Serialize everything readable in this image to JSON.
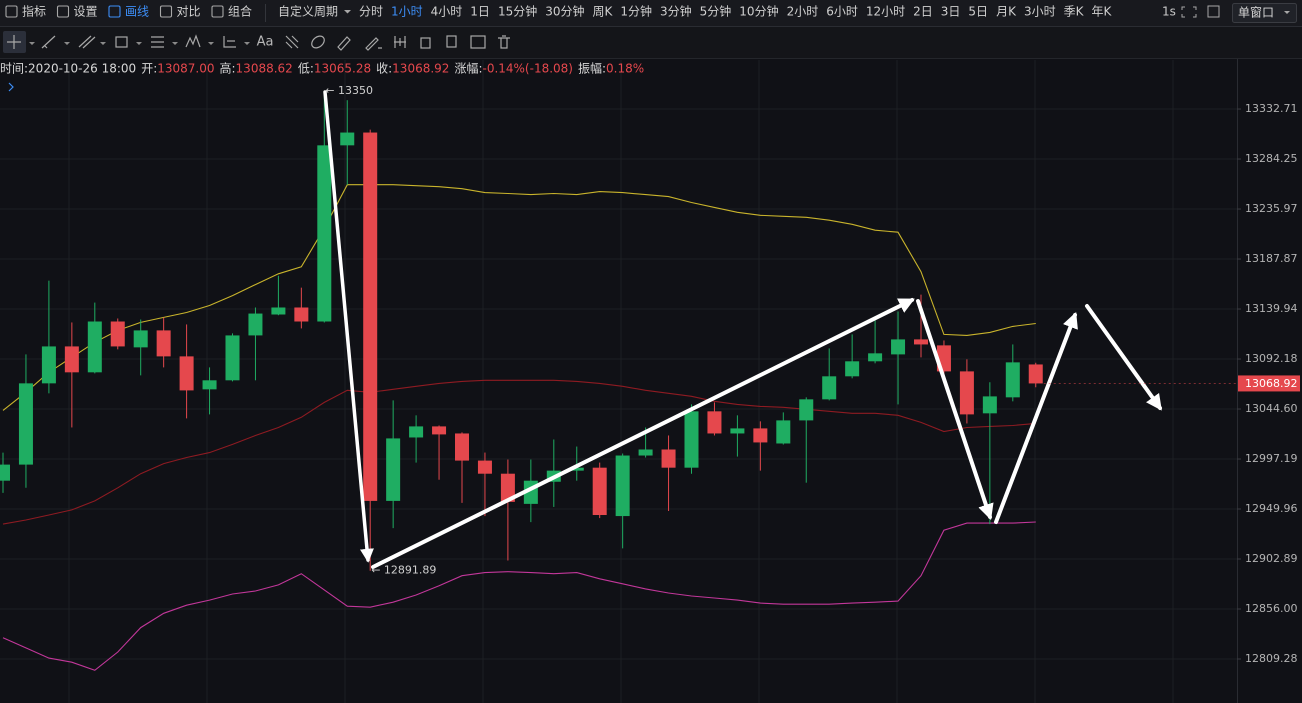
{
  "toolbar": {
    "tools": [
      {
        "label": "指标"
      },
      {
        "label": "设置"
      },
      {
        "label": "画线",
        "active": true
      },
      {
        "label": "对比"
      },
      {
        "label": "组合"
      }
    ],
    "custom_period": "自定义周期",
    "periods": [
      {
        "label": "分时"
      },
      {
        "label": "1小时",
        "active": true
      },
      {
        "label": "4小时"
      },
      {
        "label": "1日"
      },
      {
        "label": "15分钟"
      },
      {
        "label": "30分钟"
      },
      {
        "label": "周K"
      },
      {
        "label": "1分钟"
      },
      {
        "label": "3分钟"
      },
      {
        "label": "5分钟"
      },
      {
        "label": "10分钟"
      },
      {
        "label": "2小时"
      },
      {
        "label": "6小时"
      },
      {
        "label": "12小时"
      },
      {
        "label": "2日"
      },
      {
        "label": "3日"
      },
      {
        "label": "5日"
      },
      {
        "label": "月K"
      },
      {
        "label": "3小时"
      },
      {
        "label": "季K"
      },
      {
        "label": "年K"
      }
    ],
    "interval": "1s",
    "window": "单窗口"
  },
  "drawing_toolbar": {
    "text_tool": "Aa"
  },
  "info": [
    {
      "label": "时间:",
      "value": "2020-10-26 18:00",
      "color": "#d8d8d8"
    },
    {
      "label": "开:",
      "value": "13087.00",
      "color": "#e5484d"
    },
    {
      "label": "高:",
      "value": "13088.62",
      "color": "#e5484d"
    },
    {
      "label": "低:",
      "value": "13065.28",
      "color": "#e5484d"
    },
    {
      "label": "收:",
      "value": "13068.92",
      "color": "#e5484d"
    },
    {
      "label": "涨幅:",
      "value": "-0.14%(-18.08)",
      "color": "#e5484d"
    },
    {
      "label": "振幅:",
      "value": "0.18%",
      "color": "#e5484d"
    }
  ],
  "chart_data": {
    "type": "candlestick",
    "log_scale": true,
    "grid": true,
    "ylim": [
      12768.3,
      13380.4
    ],
    "yticks": [
      13332.71,
      13284.25,
      13235.97,
      13187.87,
      13139.94,
      13092.18,
      {
        "value": 13044.6,
        "label": "13044.60"
      },
      12997.19,
      12949.96,
      12902.89,
      {
        "value": 12856,
        "label": "12856.00"
      },
      12809.28
    ],
    "categories": [
      null,
      null,
      null,
      null,
      null,
      null,
      null,
      null,
      null,
      null,
      null,
      null,
      null,
      null,
      null,
      null,
      null,
      null,
      null,
      null,
      null,
      null,
      null,
      null,
      null,
      null,
      null,
      null,
      null,
      null,
      null,
      null,
      null,
      null,
      null,
      null,
      null,
      null,
      null,
      null,
      null,
      null,
      null,
      null,
      null,
      null
    ],
    "up_color": "#1fad62",
    "down_color": "#e5484d",
    "candles": {
      "open": [
        12976.7,
        12991.9,
        13069.0,
        13104.2,
        13079.5,
        13128.0,
        13103.3,
        13119.5,
        13094.7,
        13063.3,
        13071.9,
        13114.7,
        13134.7,
        13141.4,
        13128.0,
        13297.5,
        13309.9,
        12957.6,
        13017.6,
        13028.1,
        13021.4,
        12995.7,
        12983.3,
        12954.8,
        12975.7,
        12986.2,
        12989.0,
        12943.3,
        13000.5,
        13006.2,
        12989.0,
        13042.4,
        13021.4,
        13026.2,
        13011.9,
        13033.8,
        13053.8,
        13075.7,
        13090.0,
        13096.6,
        13110.9,
        13105.2,
        13080.4,
        13040.5,
        13055.7,
        13087.0
      ],
      "high": [
        13003.3,
        13096.6,
        13167.1,
        13127.1,
        13146.1,
        13130.9,
        13129.9,
        13131.8,
        13125.2,
        13084.2,
        13116.6,
        13141.4,
        13171.8,
        13160.4,
        13350,
        13341.3,
        13312.7,
        13052.8,
        13038.6,
        13029.0,
        13022.4,
        13003.3,
        12996.7,
        12996.7,
        13015.7,
        13009.0,
        12993.8,
        13002.4,
        13027.1,
        13019.5,
        13049.0,
        13050.9,
        13038.6,
        13032.9,
        13041.4,
        13055.7,
        13102.3,
        13115.7,
        13129.0,
        13137.6,
        13153.7,
        13109.9,
        13091.9,
        13070.0,
        13106.1,
        13088.62
      ],
      "low": [
        12965.2,
        12970.0,
        13059.5,
        13027.1,
        13078.5,
        13101.4,
        13076.6,
        13084.2,
        13035.7,
        13039.5,
        13070.9,
        13071.9,
        13134.0,
        13121.4,
        13127.1,
        13259.4,
        12891.89,
        12931.9,
        12993.8,
        12977.6,
        12955.7,
        12943.3,
        12901.5,
        12937.6,
        12951.9,
        12976.7,
        12941.4,
        12912.9,
        12998.6,
        12948.1,
        12983.3,
        13019.5,
        12999.5,
        12986.2,
        13010.9,
        12974.8,
        13052.8,
        13073.8,
        13088.1,
        13049.0,
        13093.8,
        13078.5,
        13030.9,
        12935.7,
        13051.9,
        13065.28
      ],
      "close": [
        12991.9,
        13069.0,
        13104.2,
        13079.5,
        13128.0,
        13104.2,
        13119.5,
        13094.7,
        13062.3,
        13071.9,
        13114.7,
        13135.6,
        13141.4,
        13128.0,
        13297.5,
        13309.9,
        12957.6,
        13016.7,
        13028.1,
        13020.5,
        12995.7,
        12983.3,
        12956.7,
        12976.7,
        12986.2,
        12989.0,
        12944.3,
        13000.5,
        13006.2,
        12989.0,
        13042.4,
        13021.4,
        13026.2,
        13012.9,
        13033.8,
        13053.8,
        13075.7,
        13090.0,
        13097.6,
        13110.9,
        13106.1,
        13080.4,
        13039.5,
        13056.6,
        13089.0,
        13068.92
      ]
    },
    "lines": [
      {
        "color": "#c9b42c",
        "values": [
          13043.3,
          13060.5,
          13079.5,
          13093.8,
          13108.1,
          13119.5,
          13127.1,
          13131.9,
          13136.6,
          13143.3,
          13152.8,
          13163.3,
          13173.7,
          13180.4,
          13217.5,
          13259.4,
          13259.4,
          13259.4,
          13258.5,
          13257.5,
          13255.6,
          13251.8,
          13250.9,
          13249.9,
          13250.9,
          13249.9,
          13252.8,
          13251.8,
          13249.9,
          13248.0,
          13242.3,
          13237.5,
          13232.8,
          13229.9,
          13229.0,
          13228.0,
          13225.2,
          13221.3,
          13215.6,
          13213.7,
          13175.7,
          13115.7,
          13114.7,
          13117.6,
          13123.3,
          13126.1
        ]
      },
      {
        "color": "#8e1b22",
        "values": [
          12935.7,
          12939.6,
          12944.3,
          12949.1,
          12957.6,
          12970.0,
          12983.3,
          12992.9,
          12998.6,
          13003.3,
          13011.0,
          13019.5,
          13027.1,
          13036.7,
          13050.9,
          13062.4,
          13060.5,
          13063.3,
          13066.2,
          13069.0,
          13070.9,
          13071.9,
          13071.9,
          13071.9,
          13071.9,
          13070.9,
          13069.0,
          13066.2,
          13062.4,
          13059.5,
          13056.7,
          13051.9,
          13049.0,
          13047.1,
          13046.2,
          13044.3,
          13042.4,
          13040.5,
          13040.5,
          13038.6,
          13031.9,
          13023.3,
          13027.1,
          13028.1,
          13029.0,
          13030.9
        ]
      },
      {
        "color": "#c2379a",
        "values": [
          12829.1,
          12819.6,
          12810.1,
          12806.3,
          12798.7,
          12815.8,
          12838.6,
          12852.0,
          12859.6,
          12864.3,
          12870.1,
          12872.9,
          12878.6,
          12889.1,
          12873.9,
          12858.6,
          12857.7,
          12862.4,
          12869.1,
          12877.7,
          12887.2,
          12890.1,
          12891.0,
          12890.1,
          12889.1,
          12890.1,
          12884.3,
          12879.6,
          12874.8,
          12871.0,
          12868.2,
          12866.3,
          12864.3,
          12861.5,
          12860.5,
          12860.5,
          12860.5,
          12861.5,
          12862.4,
          12863.4,
          12887.2,
          12930.0,
          12936.7,
          12936.7,
          12936.7,
          12937.7
        ]
      }
    ],
    "last_price": {
      "value": 13068.92,
      "label": "13068.92",
      "color": "#e5484d"
    },
    "annotations": [
      {
        "value": 13350,
        "label": "← 13350"
      },
      {
        "value": 12891.89,
        "label": "← 12891.89"
      }
    ]
  }
}
